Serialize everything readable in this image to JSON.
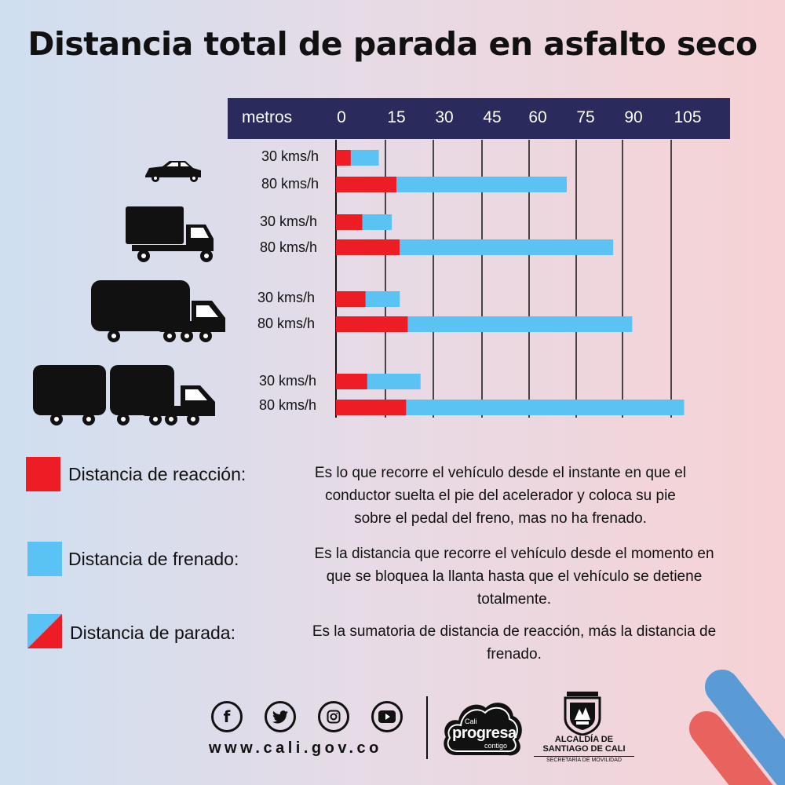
{
  "title": "Distancia total de parada en asfalto seco",
  "colors": {
    "reaction": "#ee1c24",
    "braking": "#5bc3f3",
    "axis_band": "#2b2a5c"
  },
  "chart_data": {
    "type": "bar",
    "orientation": "horizontal",
    "stacked": true,
    "unit_label": "metros",
    "x_ticks": [
      "0",
      "15",
      "30",
      "45",
      "60",
      "75",
      "90",
      "105"
    ],
    "xlim": [
      0,
      105
    ],
    "grid": true,
    "groups": [
      {
        "vehicle_icon": "car-icon",
        "rows": [
          {
            "label": "30 kms/h",
            "reaction": 4.5,
            "braking": 8.5
          },
          {
            "label": "80 kms/h",
            "reaction": 18.5,
            "braking": 53.5
          }
        ]
      },
      {
        "vehicle_icon": "small-truck-icon",
        "rows": [
          {
            "label": "30 kms/h",
            "reaction": 8,
            "braking": 9
          },
          {
            "label": "80 kms/h",
            "reaction": 19.5,
            "braking": 67.5
          }
        ]
      },
      {
        "vehicle_icon": "box-truck-icon",
        "rows": [
          {
            "label": "30 kms/h",
            "reaction": 9,
            "braking": 10.5
          },
          {
            "label": "80 kms/h",
            "reaction": 22,
            "braking": 71
          }
        ]
      },
      {
        "vehicle_icon": "trailer-truck-icon",
        "rows": [
          {
            "label": "30 kms/h",
            "reaction": 9.5,
            "braking": 16.5
          },
          {
            "label": "80 kms/h",
            "reaction": 21.5,
            "braking": 87.5
          }
        ]
      }
    ]
  },
  "legend": [
    {
      "type": "reaction",
      "label": "Distancia de reacción:",
      "lines": [
        "Es lo que recorre el vehículo desde el instante en que el",
        "conductor suelta el pie del acelerador y coloca su pie",
        "sobre el pedal del freno, mas no ha frenado."
      ]
    },
    {
      "type": "braking",
      "label": "Distancia de frenado:",
      "lines": [
        "Es la distancia que recorre el vehículo desde el momento en",
        "que se bloquea la llanta hasta que el vehículo se detiene",
        "totalmente."
      ]
    },
    {
      "type": "stopping",
      "label": "Distancia de parada:",
      "lines": [
        "Es la sumatoria de distancia de reacción, más la distancia de",
        "frenado."
      ]
    }
  ],
  "footer": {
    "social_icons": [
      "facebook-icon",
      "twitter-icon",
      "instagram-icon",
      "youtube-icon"
    ],
    "website": "www.cali.gov.co",
    "logo_cali": "Cali",
    "logo_progresa": "progresa",
    "logo_contigo": "contigo",
    "alcaldia_line1": "ALCALDÍA DE",
    "alcaldia_line2": "SANTIAGO DE CALI",
    "secretaria": "SECRETARÍA DE MOVILIDAD"
  }
}
